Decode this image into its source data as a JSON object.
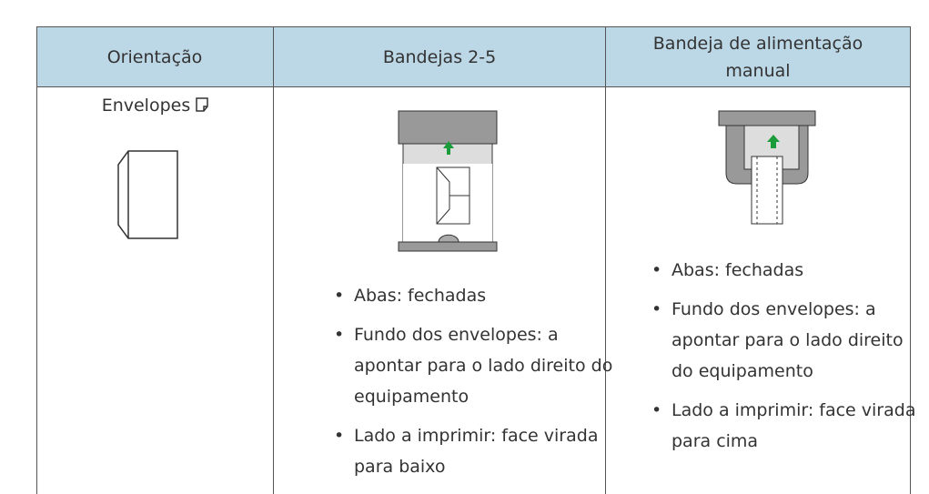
{
  "table": {
    "headers": [
      "Orientação",
      "Bandejas 2-5",
      "Bandeja de alimentação manual"
    ],
    "rows": [
      {
        "label": "Envelopes",
        "col2": [
          "Abas: fechadas",
          "Fundo dos envelopes: a apontar para o lado direito do equipamento",
          "Lado a imprimir: face virada para baixo"
        ],
        "col3": [
          "Abas: fechadas",
          "Fundo dos envelopes: a apontar para o lado direito do equipamento",
          "Lado a imprimir: face virada para cima"
        ]
      }
    ]
  }
}
